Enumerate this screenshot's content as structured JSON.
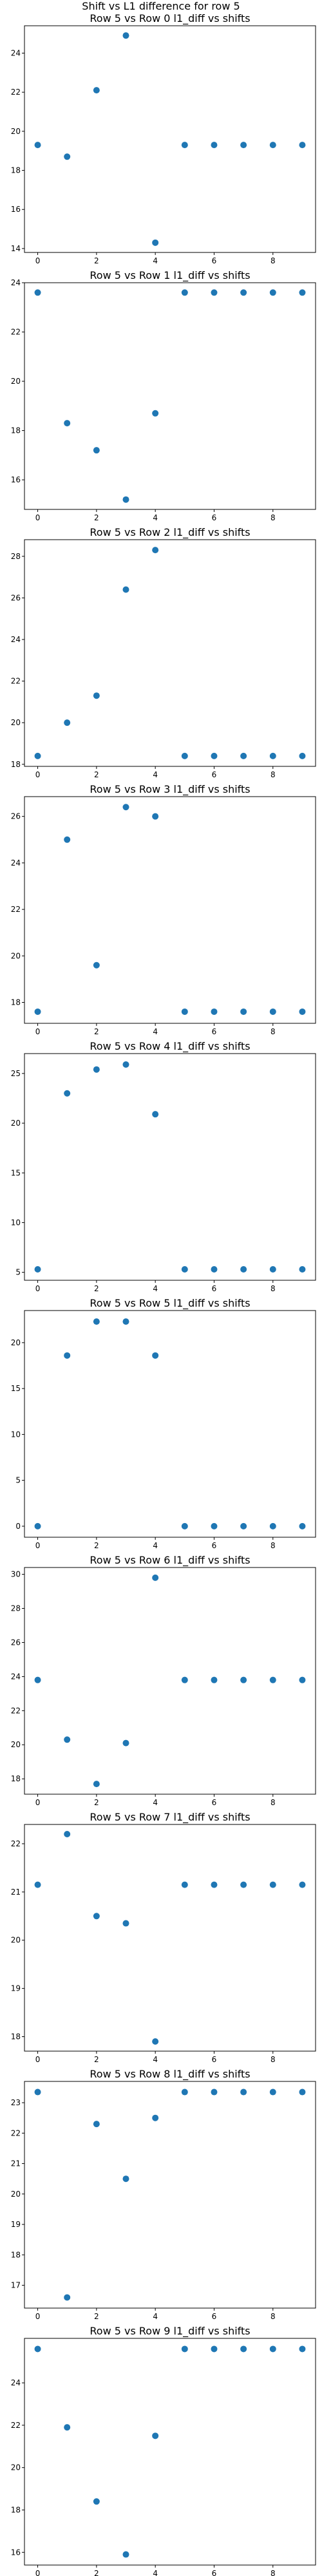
{
  "figure_title": "Shift vs L1 difference for row 5",
  "chart_data": [
    {
      "type": "scatter",
      "title": "Row 5 vs Row 0 l1_diff vs shifts",
      "x": [
        0,
        1,
        2,
        3,
        4,
        5,
        6,
        7,
        8,
        9
      ],
      "y": [
        19.3,
        18.7,
        22.1,
        24.9,
        14.3,
        19.3,
        19.3,
        19.3,
        19.3,
        19.3
      ],
      "xlim": [
        -0.45,
        9.45
      ],
      "ylim": [
        13.8,
        25.4
      ],
      "xticks": [
        0,
        2,
        4,
        6,
        8
      ],
      "yticks": [
        14,
        16,
        18,
        20,
        22,
        24
      ]
    },
    {
      "type": "scatter",
      "title": "Row 5 vs Row 1 l1_diff vs shifts",
      "x": [
        0,
        1,
        2,
        3,
        4,
        5,
        6,
        7,
        8,
        9
      ],
      "y": [
        23.6,
        18.3,
        17.2,
        15.2,
        18.7,
        23.6,
        23.6,
        23.6,
        23.6,
        23.6
      ],
      "xlim": [
        -0.45,
        9.45
      ],
      "ylim": [
        14.8,
        24.0
      ],
      "xticks": [
        0,
        2,
        4,
        6,
        8
      ],
      "yticks": [
        16,
        18,
        20,
        22,
        24
      ]
    },
    {
      "type": "scatter",
      "title": "Row 5 vs Row 2 l1_diff vs shifts",
      "x": [
        0,
        1,
        2,
        3,
        4,
        5,
        6,
        7,
        8,
        9
      ],
      "y": [
        18.4,
        20.0,
        21.3,
        26.4,
        28.3,
        18.4,
        18.4,
        18.4,
        18.4,
        18.4
      ],
      "xlim": [
        -0.45,
        9.45
      ],
      "ylim": [
        17.9,
        28.8
      ],
      "xticks": [
        0,
        2,
        4,
        6,
        8
      ],
      "yticks": [
        18,
        20,
        22,
        24,
        26,
        28
      ]
    },
    {
      "type": "scatter",
      "title": "Row 5 vs Row 3 l1_diff vs shifts",
      "x": [
        0,
        1,
        2,
        3,
        4,
        5,
        6,
        7,
        8,
        9
      ],
      "y": [
        17.6,
        25.0,
        19.6,
        26.4,
        26.0,
        17.6,
        17.6,
        17.6,
        17.6,
        17.6
      ],
      "xlim": [
        -0.45,
        9.45
      ],
      "ylim": [
        17.1,
        26.85
      ],
      "xticks": [
        0,
        2,
        4,
        6,
        8
      ],
      "yticks": [
        18,
        20,
        22,
        24,
        26
      ]
    },
    {
      "type": "scatter",
      "title": "Row 5 vs Row 4 l1_diff vs shifts",
      "x": [
        0,
        1,
        2,
        3,
        4,
        5,
        6,
        7,
        8,
        9
      ],
      "y": [
        5.3,
        23.0,
        25.4,
        25.9,
        20.9,
        5.3,
        5.3,
        5.3,
        5.3,
        5.3
      ],
      "xlim": [
        -0.45,
        9.45
      ],
      "ylim": [
        4.2,
        27.0
      ],
      "xticks": [
        0,
        2,
        4,
        6,
        8
      ],
      "yticks": [
        5,
        10,
        15,
        20,
        25
      ]
    },
    {
      "type": "scatter",
      "title": "Row 5 vs Row 5 l1_diff vs shifts",
      "x": [
        0,
        1,
        2,
        3,
        4,
        5,
        6,
        7,
        8,
        9
      ],
      "y": [
        0.0,
        18.6,
        22.3,
        22.3,
        18.6,
        0.0,
        0.0,
        0.0,
        0.0,
        0.0
      ],
      "xlim": [
        -0.45,
        9.45
      ],
      "ylim": [
        -1.2,
        23.5
      ],
      "xticks": [
        0,
        2,
        4,
        6,
        8
      ],
      "yticks": [
        0,
        5,
        10,
        15,
        20
      ]
    },
    {
      "type": "scatter",
      "title": "Row 5 vs Row 6 l1_diff vs shifts",
      "x": [
        0,
        1,
        2,
        3,
        4,
        5,
        6,
        7,
        8,
        9
      ],
      "y": [
        23.8,
        20.3,
        17.7,
        20.1,
        29.8,
        23.8,
        23.8,
        23.8,
        23.8,
        23.8
      ],
      "xlim": [
        -0.45,
        9.45
      ],
      "ylim": [
        17.1,
        30.4
      ],
      "xticks": [
        0,
        2,
        4,
        6,
        8
      ],
      "yticks": [
        18,
        20,
        22,
        24,
        26,
        28,
        30
      ]
    },
    {
      "type": "scatter",
      "title": "Row 5 vs Row 7 l1_diff vs shifts",
      "x": [
        0,
        1,
        2,
        3,
        4,
        5,
        6,
        7,
        8,
        9
      ],
      "y": [
        21.15,
        22.2,
        20.5,
        20.35,
        17.9,
        21.15,
        21.15,
        21.15,
        21.15,
        21.15
      ],
      "xlim": [
        -0.45,
        9.45
      ],
      "ylim": [
        17.7,
        22.4
      ],
      "xticks": [
        0,
        2,
        4,
        6,
        8
      ],
      "yticks": [
        18,
        19,
        20,
        21,
        22
      ]
    },
    {
      "type": "scatter",
      "title": "Row 5 vs Row 8 l1_diff vs shifts",
      "x": [
        0,
        1,
        2,
        3,
        4,
        5,
        6,
        7,
        8,
        9
      ],
      "y": [
        23.35,
        16.6,
        22.3,
        20.5,
        22.5,
        23.35,
        23.35,
        23.35,
        23.35,
        23.35
      ],
      "xlim": [
        -0.45,
        9.45
      ],
      "ylim": [
        16.25,
        23.7
      ],
      "xticks": [
        0,
        2,
        4,
        6,
        8
      ],
      "yticks": [
        17,
        18,
        19,
        20,
        21,
        22,
        23
      ]
    },
    {
      "type": "scatter",
      "title": "Row 5 vs Row 9 l1_diff vs shifts",
      "x": [
        0,
        1,
        2,
        3,
        4,
        5,
        6,
        7,
        8,
        9
      ],
      "y": [
        25.6,
        21.9,
        18.4,
        15.9,
        21.5,
        25.6,
        25.6,
        25.6,
        25.6,
        25.6
      ],
      "xlim": [
        -0.45,
        9.45
      ],
      "ylim": [
        15.4,
        26.1
      ],
      "xticks": [
        0,
        2,
        4,
        6,
        8
      ],
      "yticks": [
        16,
        18,
        20,
        22,
        24
      ]
    }
  ]
}
